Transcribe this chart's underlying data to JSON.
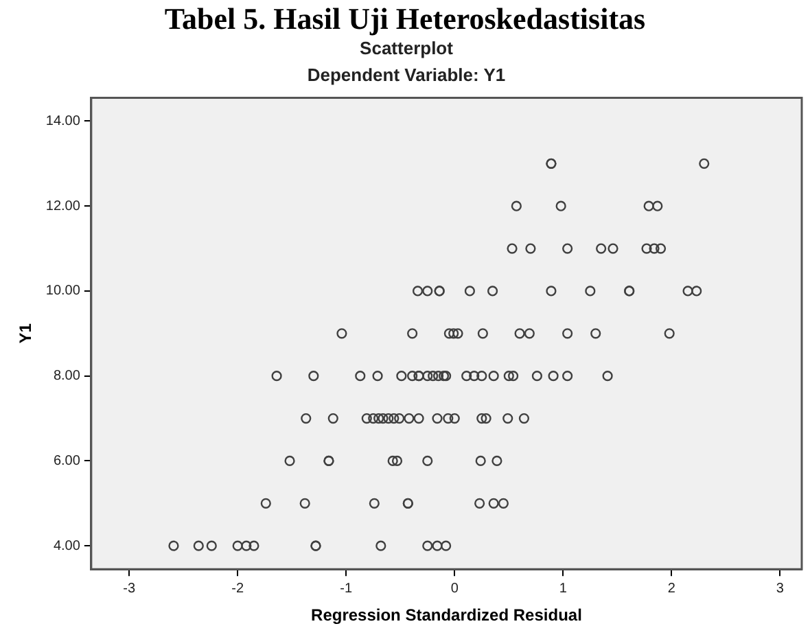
{
  "chart_data": {
    "type": "scatter",
    "title": "Scatterplot",
    "subtitle": "Dependent Variable: Y1",
    "annotations": [
      "Tabel 5. Hasil Uji Heteroskedastisitas"
    ],
    "xlabel": "Regression Standardized Residual",
    "ylabel": "Y1",
    "xlim": [
      -3.35,
      3.2
    ],
    "xticks": [
      -3,
      -2,
      -1,
      0,
      1,
      2,
      3
    ],
    "ylim": [
      3.45,
      14.55
    ],
    "yticks": [
      {
        "value": 4,
        "label": "4.00"
      },
      {
        "value": 6,
        "label": "6.00"
      },
      {
        "value": 8,
        "label": "8.00"
      },
      {
        "value": 10,
        "label": "10.00"
      },
      {
        "value": 12,
        "label": "12.00"
      },
      {
        "value": 14,
        "label": "14.00"
      }
    ],
    "grid": false,
    "marker": "circle",
    "series": [
      {
        "color": "#404040",
        "x": [
          0.89,
          0.89,
          2.3,
          0.57,
          0.98,
          1.79,
          1.87,
          0.53,
          0.7,
          1.04,
          1.35,
          1.46,
          1.77,
          1.84,
          1.9,
          -0.34,
          -0.25,
          -0.14,
          -0.14,
          0.14,
          0.35,
          0.89,
          1.25,
          1.61,
          1.61,
          2.15,
          2.23,
          -1.04,
          -0.39,
          -0.05,
          -0.01,
          0.03,
          0.26,
          0.6,
          0.69,
          1.04,
          1.3,
          1.98,
          -1.64,
          -1.3,
          -0.87,
          -0.71,
          -0.49,
          -0.39,
          -0.33,
          -0.33,
          -0.25,
          -0.2,
          -0.15,
          -0.1,
          -0.08,
          0.11,
          0.18,
          0.25,
          0.36,
          0.5,
          0.54,
          0.76,
          0.91,
          1.04,
          1.41,
          -1.37,
          -1.12,
          -0.81,
          -0.75,
          -0.7,
          -0.66,
          -0.61,
          -0.56,
          -0.51,
          -0.42,
          -0.33,
          -0.16,
          -0.06,
          0.0,
          0.25,
          0.29,
          0.49,
          0.64,
          -1.52,
          -1.16,
          -1.16,
          -0.57,
          -0.53,
          -0.25,
          0.24,
          0.39,
          -1.74,
          -1.38,
          -0.74,
          -0.43,
          -0.43,
          0.23,
          0.36,
          0.45,
          -2.59,
          -2.36,
          -2.24,
          -2.0,
          -1.92,
          -1.85,
          -1.28,
          -1.28,
          -0.68,
          -0.25,
          -0.16,
          -0.08
        ],
        "values": [
          13,
          13,
          13,
          12,
          12,
          12,
          12,
          11,
          11,
          11,
          11,
          11,
          11,
          11,
          11,
          10,
          10,
          10,
          10,
          10,
          10,
          10,
          10,
          10,
          10,
          10,
          10,
          9,
          9,
          9,
          9,
          9,
          9,
          9,
          9,
          9,
          9,
          9,
          8,
          8,
          8,
          8,
          8,
          8,
          8,
          8,
          8,
          8,
          8,
          8,
          8,
          8,
          8,
          8,
          8,
          8,
          8,
          8,
          8,
          8,
          8,
          7,
          7,
          7,
          7,
          7,
          7,
          7,
          7,
          7,
          7,
          7,
          7,
          7,
          7,
          7,
          7,
          7,
          7,
          6,
          6,
          6,
          6,
          6,
          6,
          6,
          6,
          5,
          5,
          5,
          5,
          5,
          5,
          5,
          5,
          4,
          4,
          4,
          4,
          4,
          4,
          4,
          4,
          4,
          4,
          4,
          4
        ]
      }
    ]
  }
}
